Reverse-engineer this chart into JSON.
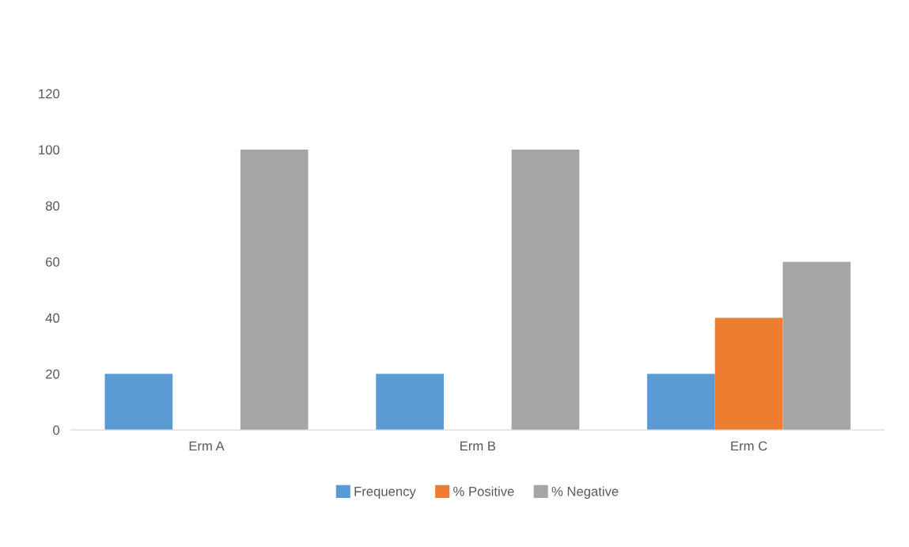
{
  "chart_data": {
    "type": "bar",
    "categories": [
      "Erm A",
      "Erm B",
      "Erm C"
    ],
    "series": [
      {
        "name": "Frequency",
        "color": "#5b9bd5",
        "values": [
          20,
          20,
          20
        ]
      },
      {
        "name": "% Positive",
        "color": "#ed7d31",
        "values": [
          0,
          0,
          40
        ]
      },
      {
        "name": "% Negative",
        "color": "#a5a5a5",
        "values": [
          100,
          100,
          60
        ]
      }
    ],
    "ylim": [
      0,
      120
    ],
    "yticks": [
      0,
      20,
      40,
      60,
      80,
      100,
      120
    ],
    "grid": false,
    "legend": "bottom"
  }
}
